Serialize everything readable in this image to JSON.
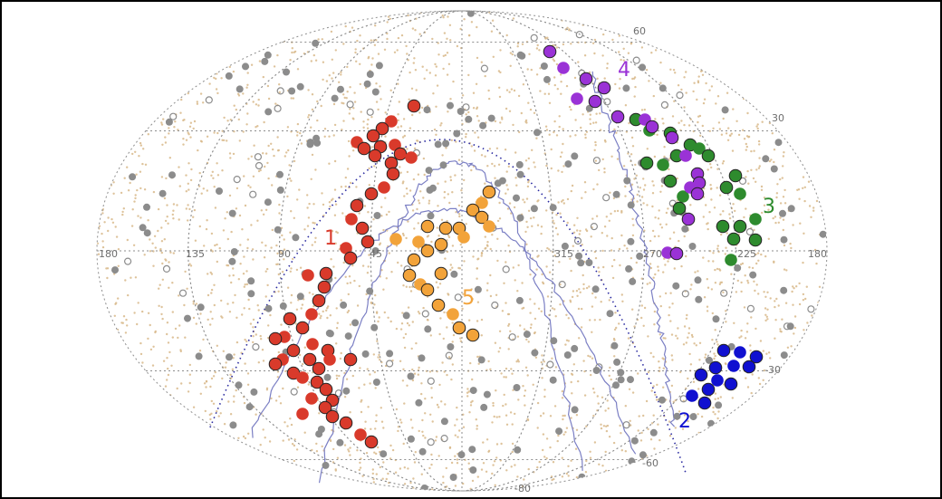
{
  "chart_data": {
    "type": "scatter",
    "projection": "aitoff-sky-map",
    "title": "",
    "xlabel": "",
    "ylabel": "",
    "grid": true,
    "legend": "none",
    "longitude_ticks": [
      "180",
      "135",
      "90",
      "45",
      "315",
      "270",
      "225",
      "180"
    ],
    "latitude_ticks": [
      "60",
      "30",
      "-30",
      "-60",
      "-80"
    ],
    "colors": {
      "background_points": "#d8b98a",
      "gray_points": "#8c8c8c",
      "grid": "#8e8e8e",
      "boundary_line": "#7b7fc4",
      "dotted_line": "#2a2aa0",
      "group_1": "#d93a2b",
      "group_2": "#1010d0",
      "group_3": "#2e8b2e",
      "group_4": "#9a32d6",
      "group_5": "#f2a33a"
    },
    "series": [
      {
        "name": "1",
        "color": "#d93a2b",
        "points": [
          [
            455,
            115
          ],
          [
            430,
            132
          ],
          [
            420,
            140
          ],
          [
            410,
            148
          ],
          [
            392,
            155
          ],
          [
            400,
            162
          ],
          [
            418,
            160
          ],
          [
            434,
            158
          ],
          [
            440,
            168
          ],
          [
            430,
            178
          ],
          [
            452,
            172
          ],
          [
            412,
            170
          ],
          [
            432,
            190
          ],
          [
            422,
            205
          ],
          [
            408,
            212
          ],
          [
            392,
            225
          ],
          [
            386,
            240
          ],
          [
            398,
            250
          ],
          [
            404,
            265
          ],
          [
            380,
            272
          ],
          [
            385,
            283
          ],
          [
            358,
            300
          ],
          [
            338,
            302
          ],
          [
            356,
            315
          ],
          [
            350,
            330
          ],
          [
            342,
            345
          ],
          [
            318,
            350
          ],
          [
            332,
            360
          ],
          [
            312,
            370
          ],
          [
            302,
            372
          ],
          [
            322,
            385
          ],
          [
            343,
            378
          ],
          [
            360,
            385
          ],
          [
            385,
            395
          ],
          [
            362,
            395
          ],
          [
            350,
            405
          ],
          [
            340,
            395
          ],
          [
            310,
            395
          ],
          [
            302,
            400
          ],
          [
            322,
            410
          ],
          [
            332,
            415
          ],
          [
            348,
            420
          ],
          [
            358,
            428
          ],
          [
            342,
            438
          ],
          [
            365,
            440
          ],
          [
            357,
            448
          ],
          [
            332,
            455
          ],
          [
            365,
            458
          ],
          [
            380,
            465
          ],
          [
            396,
            478
          ],
          [
            408,
            486
          ]
        ]
      },
      {
        "name": "2",
        "color": "#1010d0",
        "points": [
          [
            797,
            385
          ],
          [
            815,
            387
          ],
          [
            833,
            392
          ],
          [
            825,
            403
          ],
          [
            808,
            402
          ],
          [
            788,
            404
          ],
          [
            772,
            412
          ],
          [
            790,
            418
          ],
          [
            805,
            422
          ],
          [
            780,
            428
          ],
          [
            762,
            435
          ],
          [
            776,
            443
          ]
        ]
      },
      {
        "name": "3",
        "color": "#2e8b2e",
        "points": [
          [
            700,
            130
          ],
          [
            715,
            142
          ],
          [
            738,
            145
          ],
          [
            760,
            158
          ],
          [
            770,
            162
          ],
          [
            780,
            170
          ],
          [
            745,
            170
          ],
          [
            730,
            180
          ],
          [
            712,
            178
          ],
          [
            738,
            198
          ],
          [
            752,
            215
          ],
          [
            748,
            228
          ],
          [
            800,
            205
          ],
          [
            815,
            212
          ],
          [
            796,
            248
          ],
          [
            815,
            248
          ],
          [
            832,
            240
          ],
          [
            832,
            263
          ],
          [
            808,
            262
          ],
          [
            805,
            285
          ],
          [
            810,
            192
          ]
        ]
      },
      {
        "name": "4",
        "color": "#9a32d6",
        "points": [
          [
            605,
            55
          ],
          [
            620,
            73
          ],
          [
            645,
            85
          ],
          [
            665,
            95
          ],
          [
            635,
            107
          ],
          [
            655,
            110
          ],
          [
            680,
            127
          ],
          [
            710,
            130
          ],
          [
            718,
            138
          ],
          [
            740,
            150
          ],
          [
            755,
            170
          ],
          [
            768,
            190
          ],
          [
            770,
            200
          ],
          [
            760,
            205
          ],
          [
            768,
            212
          ],
          [
            758,
            240
          ],
          [
            735,
            277
          ],
          [
            745,
            278
          ]
        ]
      },
      {
        "name": "5",
        "color": "#f2a33a",
        "points": [
          [
            538,
            210
          ],
          [
            530,
            222
          ],
          [
            520,
            230
          ],
          [
            530,
            238
          ],
          [
            538,
            248
          ],
          [
            505,
            250
          ],
          [
            490,
            250
          ],
          [
            510,
            260
          ],
          [
            470,
            248
          ],
          [
            485,
            268
          ],
          [
            460,
            265
          ],
          [
            470,
            275
          ],
          [
            455,
            285
          ],
          [
            435,
            262
          ],
          [
            450,
            302
          ],
          [
            485,
            300
          ],
          [
            462,
            312
          ],
          [
            470,
            318
          ],
          [
            482,
            335
          ],
          [
            498,
            345
          ],
          [
            505,
            360
          ],
          [
            520,
            368
          ]
        ]
      }
    ],
    "group_labels": [
      "1",
      "2",
      "3",
      "4",
      "5"
    ]
  }
}
